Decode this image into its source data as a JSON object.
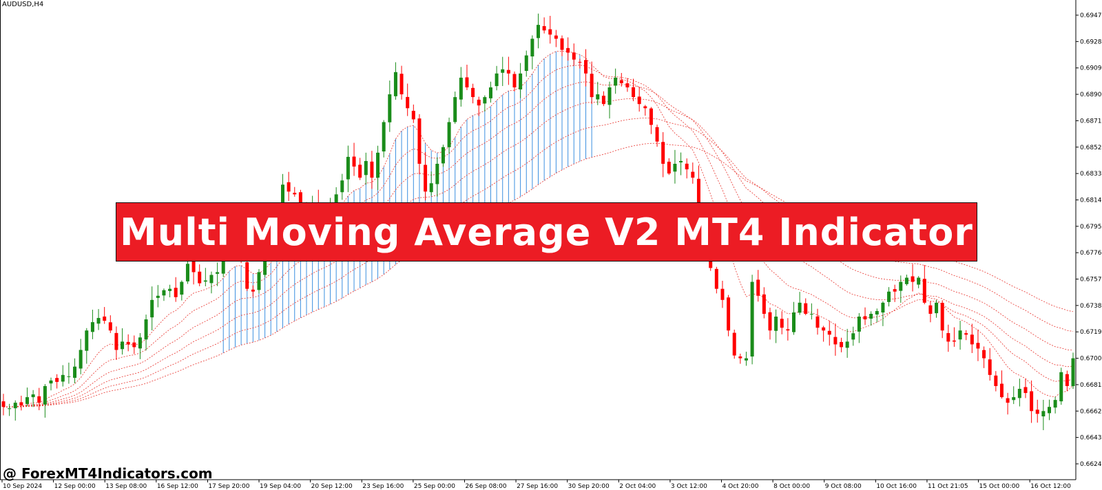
{
  "symbol": "AUDUSD,H4",
  "banner_title": "Multi Moving Average V2 MT4 Indicator",
  "watermark": "@ ForexMT4Indicators.com",
  "colors": {
    "bull": "#1a8c1a",
    "bear": "#ff0000",
    "ma_lines": "#e8302a",
    "histogram": "#3a8fe0",
    "banner": "#ec1c24"
  },
  "chart_data": {
    "type": "candlestick",
    "y_ticks": [
      "0.69470",
      "0.69280",
      "0.69090",
      "0.68900",
      "0.68710",
      "0.68520",
      "0.68330",
      "0.68140",
      "0.67950",
      "0.67760",
      "0.67570",
      "0.67380",
      "0.67190",
      "0.67000",
      "0.66810",
      "0.66620",
      "0.66430",
      "0.66240"
    ],
    "x_ticks": [
      "10 Sep 2024",
      "12 Sep 00:00",
      "13 Sep 08:00",
      "16 Sep 12:00",
      "17 Sep 20:00",
      "19 Sep 04:00",
      "20 Sep 12:00",
      "23 Sep 16:00",
      "25 Sep 00:00",
      "26 Sep 08:00",
      "27 Sep 16:00",
      "30 Sep 20:00",
      "2 Oct 04:00",
      "3 Oct 12:00",
      "4 Oct 20:00",
      "8 Oct 00:00",
      "9 Oct 08:00",
      "10 Oct 16:00",
      "11 Oct 21:05",
      "15 Oct 00:00",
      "16 Oct 12:00"
    ],
    "ylim": [
      0.6618,
      0.6956
    ],
    "close": [
      0.6665,
      0.6664,
      0.6668,
      0.6666,
      0.6672,
      0.6674,
      0.6668,
      0.668,
      0.6684,
      0.6683,
      0.6688,
      0.6687,
      0.6694,
      0.6706,
      0.672,
      0.6726,
      0.6729,
      0.6727,
      0.672,
      0.6706,
      0.6712,
      0.671,
      0.6708,
      0.6715,
      0.6728,
      0.6742,
      0.6745,
      0.6749,
      0.675,
      0.6744,
      0.6755,
      0.6768,
      0.6762,
      0.6754,
      0.6756,
      0.676,
      0.6762,
      0.6777,
      0.6785,
      0.6782,
      0.677,
      0.675,
      0.6748,
      0.6762,
      0.6777,
      0.679,
      0.681,
      0.6825,
      0.682,
      0.6818,
      0.681,
      0.6806,
      0.6812,
      0.6808,
      0.6802,
      0.681,
      0.6818,
      0.6828,
      0.6845,
      0.6838,
      0.683,
      0.6842,
      0.683,
      0.6848,
      0.687,
      0.689,
      0.6906,
      0.689,
      0.688,
      0.6872,
      0.684,
      0.682,
      0.6826,
      0.684,
      0.6852,
      0.687,
      0.6888,
      0.6902,
      0.6895,
      0.6888,
      0.6882,
      0.6888,
      0.6895,
      0.6905,
      0.6908,
      0.6905,
      0.6895,
      0.6905,
      0.6918,
      0.693,
      0.694,
      0.6936,
      0.6933,
      0.693,
      0.6922,
      0.692,
      0.6915,
      0.6913,
      0.6905,
      0.6888,
      0.689,
      0.6883,
      0.6895,
      0.6902,
      0.6898,
      0.6895,
      0.6888,
      0.6883,
      0.688,
      0.6868,
      0.6856,
      0.684,
      0.6833,
      0.684,
      0.6842,
      0.6836,
      0.683,
      0.68,
      0.678,
      0.6765,
      0.675,
      0.6742,
      0.672,
      0.6702,
      0.67,
      0.67,
      0.6755,
      0.6745,
      0.6732,
      0.672,
      0.673,
      0.6722,
      0.672,
      0.6733,
      0.674,
      0.6732,
      0.6732,
      0.6722,
      0.672,
      0.6717,
      0.671,
      0.6708,
      0.6712,
      0.6718,
      0.673,
      0.6728,
      0.6732,
      0.6734,
      0.674,
      0.6748,
      0.6748,
      0.6755,
      0.6758,
      0.6755,
      0.6758,
      0.674,
      0.6732,
      0.674,
      0.672,
      0.6712,
      0.6712,
      0.672,
      0.6717,
      0.671,
      0.6707,
      0.67,
      0.6688,
      0.668,
      0.6672,
      0.6668,
      0.6672,
      0.6678,
      0.6675,
      0.6662,
      0.666,
      0.6662,
      0.6665,
      0.667,
      0.669,
      0.668,
      0.67
    ]
  }
}
